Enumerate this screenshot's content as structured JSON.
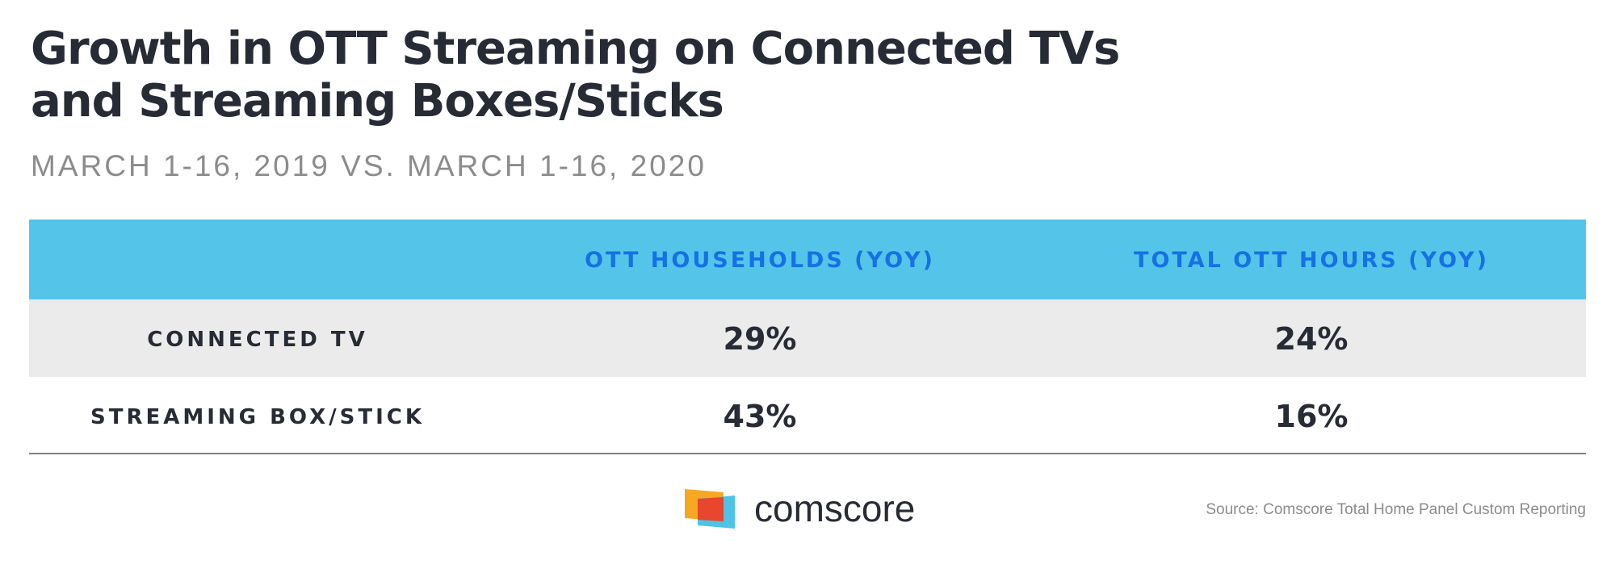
{
  "header": {
    "title": [
      "Growth in OTT Streaming on Connected TVs",
      "and Streaming Boxes/Sticks"
    ],
    "subtitle": "MARCH 1-16, 2019 VS. MARCH 1-16, 2020"
  },
  "table": {
    "columns": [
      "OTT HOUSEHOLDS (YOY)",
      "TOTAL OTT HOURS (YOY)"
    ],
    "rows": [
      {
        "label": "CONNECTED TV",
        "values": [
          "29%",
          "24%"
        ]
      },
      {
        "label": "STREAMING BOX/STICK",
        "values": [
          "43%",
          "16%"
        ]
      }
    ]
  },
  "footer": {
    "logo": "comscore",
    "source": "Source: Comscore Total Home Panel Custom Reporting"
  }
}
